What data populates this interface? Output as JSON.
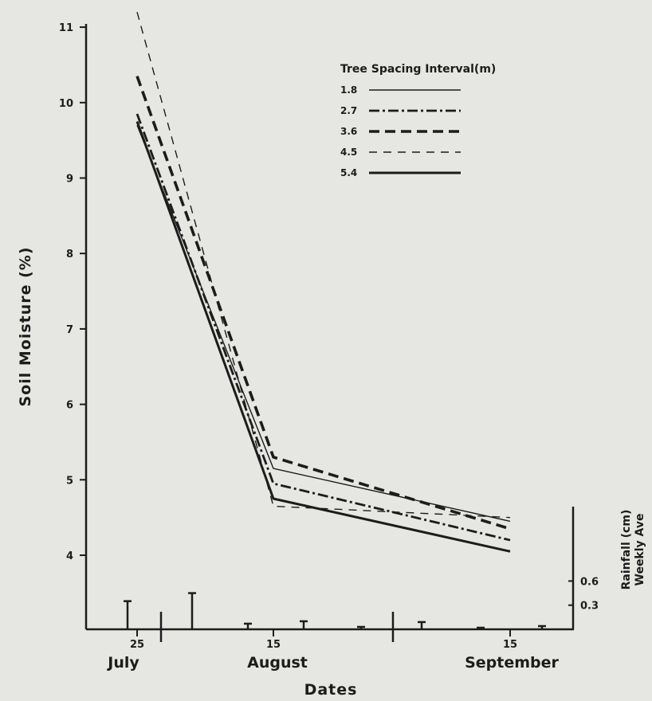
{
  "chart_data": {
    "type": "line",
    "title": "",
    "xlabel": "Dates",
    "ylabel": "Soil Moisture (%)",
    "ylim": [
      3.5,
      11.3
    ],
    "y_ticks": [
      "4",
      "5",
      "6",
      "7",
      "8",
      "9",
      "10",
      "11"
    ],
    "x_tick_labels": [
      "25",
      "15",
      "15"
    ],
    "month_labels": [
      "July",
      "August",
      "September"
    ],
    "x": [
      "July 25",
      "August 15",
      "September 15"
    ],
    "legend_title": "Tree Spacing Interval(m)",
    "legend_position": "top-right",
    "grid": false,
    "series": [
      {
        "name": "1.8",
        "style": "solid-thin",
        "values": [
          9.7,
          5.15,
          4.45
        ]
      },
      {
        "name": "2.7",
        "style": "dash-dot",
        "values": [
          9.85,
          4.95,
          4.2
        ]
      },
      {
        "name": "3.6",
        "style": "dashed-thick",
        "values": [
          10.35,
          5.3,
          4.35
        ]
      },
      {
        "name": "4.5",
        "style": "dashed-thin",
        "values": [
          11.2,
          4.65,
          4.5
        ]
      },
      {
        "name": "5.4",
        "style": "solid-thick",
        "values": [
          9.75,
          4.75,
          4.05
        ]
      }
    ],
    "rainfall": {
      "axis_label_line1": "Rainfall (cm)",
      "axis_label_line2": "Weekly Ave",
      "ticks": [
        "0.3",
        "0.6"
      ],
      "values": [
        0.35,
        0.45,
        0.07,
        0.1,
        0.03,
        0.09,
        0.02,
        0.04
      ]
    }
  }
}
